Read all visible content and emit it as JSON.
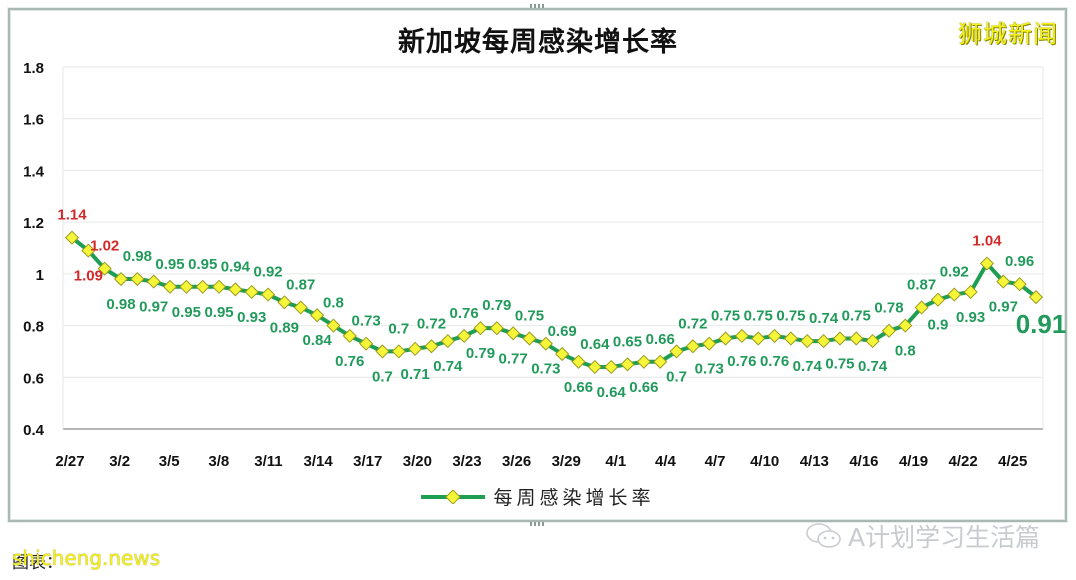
{
  "header": {
    "title": "新加坡每周感染增长率",
    "brand": "狮城新闻"
  },
  "legend": {
    "label": "每周感染增长率"
  },
  "footer": {
    "wechat_account": "A计划学习生活篇",
    "source_label": "图表：",
    "watermark": "shicheng.news"
  },
  "colors": {
    "line": "#1e9e52",
    "marker_fill": "#f5f53a",
    "marker_stroke": "#9c9c1e",
    "label_normal": "#229a5c",
    "label_above_one": "#d22a2a",
    "grid": "#e6e9e8",
    "axis": "#8a8a8a"
  },
  "chart_data": {
    "type": "line",
    "title": "新加坡每周感染增长率",
    "xlabel": "",
    "ylabel": "",
    "ylim": [
      0.4,
      1.8
    ],
    "yticks": [
      0.4,
      0.6,
      0.8,
      1,
      1.2,
      1.4,
      1.6,
      1.8
    ],
    "xtick_labels": [
      "2/27",
      "3/2",
      "3/5",
      "3/8",
      "3/11",
      "3/14",
      "3/17",
      "3/20",
      "3/23",
      "3/26",
      "3/29",
      "4/1",
      "4/4",
      "4/7",
      "4/10",
      "4/13",
      "4/16",
      "4/19",
      "4/22",
      "4/25"
    ],
    "grid": true,
    "legend_position": "bottom",
    "series": [
      {
        "name": "每周感染增长率",
        "values": [
          1.14,
          1.09,
          1.02,
          0.98,
          0.98,
          0.97,
          0.95,
          0.95,
          0.95,
          0.95,
          0.94,
          0.93,
          0.92,
          0.89,
          0.87,
          0.84,
          0.8,
          0.76,
          0.73,
          0.7,
          0.7,
          0.71,
          0.72,
          0.74,
          0.76,
          0.79,
          0.79,
          0.77,
          0.75,
          0.73,
          0.69,
          0.66,
          0.64,
          0.64,
          0.65,
          0.66,
          0.66,
          0.7,
          0.72,
          0.73,
          0.75,
          0.76,
          0.75,
          0.76,
          0.75,
          0.74,
          0.74,
          0.75,
          0.75,
          0.74,
          0.78,
          0.8,
          0.87,
          0.9,
          0.92,
          0.93,
          1.04,
          0.97,
          0.96,
          0.91
        ]
      }
    ],
    "annotations": [
      {
        "text": "0.91",
        "note": "latest value, emphasized large bold label"
      }
    ]
  }
}
